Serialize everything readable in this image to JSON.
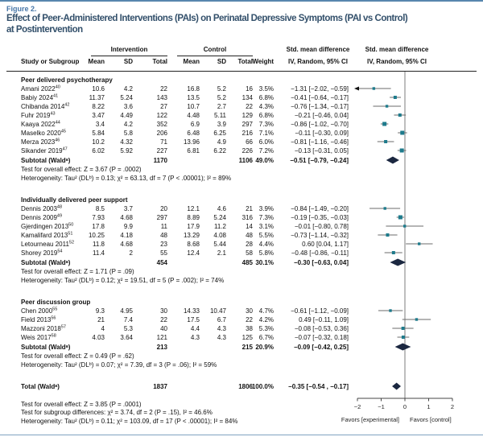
{
  "figure": {
    "eyebrow": "Figure 2.",
    "title_line1": "Effect of Peer-Administered Interventions (PAIs) on Perinatal Depressive Symptoms (PAI vs Control)",
    "title_line2": "at Postintervention"
  },
  "table": {
    "col_study": "Study or Subgroup",
    "group_intervention": "Intervention",
    "group_control": "Control",
    "col_mean": "Mean",
    "col_sd": "SD",
    "col_total": "Total",
    "col_weight": "Weight",
    "col_smd_line1": "Std. mean difference",
    "col_smd_line2": "IV, Random, 95% CI"
  },
  "sections": [
    {
      "title": "Peer delivered psychotherapy",
      "rows": [
        {
          "study": "Amani 2022",
          "ref": "40",
          "i_mean": "10.6",
          "i_sd": "4.2",
          "i_total": "22",
          "c_mean": "16.8",
          "c_sd": "5.2",
          "c_total": "16",
          "weight": "3.5%",
          "ci": "−1.31 [−2.02, −0.59]"
        },
        {
          "study": "Babiy 2024",
          "ref": "41",
          "i_mean": "11.37",
          "i_sd": "5.24",
          "i_total": "143",
          "c_mean": "13.5",
          "c_sd": "5.2",
          "c_total": "134",
          "weight": "6.8%",
          "ci": "−0.41 [−0.64, −0.17]"
        },
        {
          "study": "Chibanda 2014",
          "ref": "42",
          "i_mean": "8.22",
          "i_sd": "3.6",
          "i_total": "27",
          "c_mean": "10.7",
          "c_sd": "2.7",
          "c_total": "22",
          "weight": "4.3%",
          "ci": "−0.76 [−1.34, −0.17]"
        },
        {
          "study": "Fuhr 2019",
          "ref": "43",
          "i_mean": "3.47",
          "i_sd": "4.49",
          "i_total": "122",
          "c_mean": "4.48",
          "c_sd": "5.11",
          "c_total": "129",
          "weight": "6.8%",
          "ci": "−0.21 [−0.46, 0.04]"
        },
        {
          "study": "Kaaya 2022",
          "ref": "44",
          "i_mean": "3.4",
          "i_sd": "4.2",
          "i_total": "352",
          "c_mean": "6.9",
          "c_sd": "3.9",
          "c_total": "297",
          "weight": "7.3%",
          "ci": "−0.86 [−1.02, −0.70]"
        },
        {
          "study": "Maselko 2020",
          "ref": "45",
          "i_mean": "5.84",
          "i_sd": "5.8",
          "i_total": "206",
          "c_mean": "6.48",
          "c_sd": "6.25",
          "c_total": "216",
          "weight": "7.1%",
          "ci": "−0.11 [−0.30, 0.09]"
        },
        {
          "study": "Merza 2023",
          "ref": "46",
          "i_mean": "10.2",
          "i_sd": "4.32",
          "i_total": "71",
          "c_mean": "13.96",
          "c_sd": "4.9",
          "c_total": "66",
          "weight": "6.0%",
          "ci": "−0.81 [−1.16, −0.46]"
        },
        {
          "study": "Sikander 2019",
          "ref": "47",
          "i_mean": "6.02",
          "i_sd": "5.92",
          "i_total": "227",
          "c_mean": "6.81",
          "c_sd": "6.22",
          "c_total": "226",
          "weight": "7.2%",
          "ci": "−0.13 [−0.31, 0.05]"
        }
      ],
      "subtotal": {
        "label": "Subtotal (Waldᵃ)",
        "i_total": "1170",
        "c_total": "1106",
        "weight": "49.0%",
        "ci": "−0.51 [−0.79, −0.24]"
      },
      "footnotes": [
        "Test for overall effect: Z = 3.67 (P = .0002)",
        "Heterogeneity: Tau² (DLᵇ) = 0.13; χ² = 63.13, df = 7 (P < .00001); I² = 89%"
      ]
    },
    {
      "title": "Individually delivered peer support",
      "rows": [
        {
          "study": "Dennis 2003",
          "ref": "48",
          "i_mean": "8.5",
          "i_sd": "3.7",
          "i_total": "20",
          "c_mean": "12.1",
          "c_sd": "4.6",
          "c_total": "21",
          "weight": "3.9%",
          "ci": "−0.84 [−1.49, −0.20]"
        },
        {
          "study": "Dennis 2009",
          "ref": "49",
          "i_mean": "7.93",
          "i_sd": "4.68",
          "i_total": "297",
          "c_mean": "8.89",
          "c_sd": "5.24",
          "c_total": "316",
          "weight": "7.3%",
          "ci": "−0.19 [−0.35, −0.03]"
        },
        {
          "study": "Gjerdingen 2013",
          "ref": "50",
          "i_mean": "17.8",
          "i_sd": "9.9",
          "i_total": "11",
          "c_mean": "17.9",
          "c_sd": "11.2",
          "c_total": "14",
          "weight": "3.1%",
          "ci": "−0.01 [−0.80, 0.78]"
        },
        {
          "study": "Kamalifard 2013",
          "ref": "51",
          "i_mean": "10.25",
          "i_sd": "4.18",
          "i_total": "48",
          "c_mean": "13.29",
          "c_sd": "4.08",
          "c_total": "48",
          "weight": "5.5%",
          "ci": "−0.73 [−1.14, −0.32]"
        },
        {
          "study": "Letourneau 2011",
          "ref": "52",
          "i_mean": "11.8",
          "i_sd": "4.68",
          "i_total": "23",
          "c_mean": "8.68",
          "c_sd": "5.44",
          "c_total": "28",
          "weight": "4.4%",
          "ci": "0.60 [0.04, 1.17]"
        },
        {
          "study": "Shorey 2019",
          "ref": "54",
          "i_mean": "11.4",
          "i_sd": "2",
          "i_total": "55",
          "c_mean": "12.4",
          "c_sd": "2.1",
          "c_total": "58",
          "weight": "5.8%",
          "ci": "−0.48 [−0.86, −0.11]"
        }
      ],
      "subtotal": {
        "label": "Subtotal (Waldᵃ)",
        "i_total": "454",
        "c_total": "485",
        "weight": "30.1%",
        "ci": "−0.30 [−0.63, 0.04]"
      },
      "footnotes": [
        "Test for overall effect: Z = 1.71 (P = .09)",
        "Heterogeneity: Tau² (DLᵇ) = 0.12; χ² = 19.51, df = 5 (P = .002); I² = 74%"
      ]
    },
    {
      "title": "Peer discussion group",
      "rows": [
        {
          "study": "Chen 2000",
          "ref": "55",
          "i_mean": "9.3",
          "i_sd": "4.95",
          "i_total": "30",
          "c_mean": "14.33",
          "c_sd": "10.47",
          "c_total": "30",
          "weight": "4.7%",
          "ci": "−0.61 [−1.12, −0.09]"
        },
        {
          "study": "Field 2013",
          "ref": "56",
          "i_mean": "21",
          "i_sd": "7.4",
          "i_total": "22",
          "c_mean": "17.5",
          "c_sd": "6.7",
          "c_total": "22",
          "weight": "4.2%",
          "ci": "0.49 [−0.11, 1.09]"
        },
        {
          "study": "Mazzoni 2018",
          "ref": "57",
          "i_mean": "4",
          "i_sd": "5.3",
          "i_total": "40",
          "c_mean": "4.4",
          "c_sd": "4.3",
          "c_total": "38",
          "weight": "5.3%",
          "ci": "−0.08 [−0.53, 0.36]"
        },
        {
          "study": "Weis 2017",
          "ref": "58",
          "i_mean": "4.03",
          "i_sd": "3.64",
          "i_total": "121",
          "c_mean": "4.3",
          "c_sd": "4.3",
          "c_total": "125",
          "weight": "6.7%",
          "ci": "−0.07 [−0.32, 0.18]"
        }
      ],
      "subtotal": {
        "label": "Subtotal (Waldᵃ)",
        "i_total": "213",
        "c_total": "215",
        "weight": "20.9%",
        "ci": "−0.09 [−0.42, 0.25]"
      },
      "footnotes": [
        "Test for overall effect: Z = 0.49 (P = .62)",
        "Heterogeneity: Tau² (DLᵇ) = 0.07; χ² = 7.39, df = 3 (P = .06); I² = 59%"
      ]
    }
  ],
  "total": {
    "label": "Total (Waldᵃ)",
    "i_total": "1837",
    "c_total": "1806",
    "weight": "100.0%",
    "ci": "−0.35 [−0.54 , −0.17]"
  },
  "footer": [
    "Test for overall effect: Z = 3.85 (P = .0001)",
    "Test for subgroup differences: χ² = 3.74, df = 2 (P = .15), I² = 46.6%",
    "Heterogeneity: Tau² (DLᵇ) = 0.11; χ² = 103.09, df = 17 (P < .00001); I² = 84%"
  ],
  "axis": {
    "ticks": [
      "−2",
      "−1",
      "0",
      "1",
      "2"
    ],
    "favors_left": "Favors [experimental]",
    "favors_right": "Favors [control]"
  },
  "colors": {
    "accent": "#4576a8",
    "title": "#33506b",
    "rule_blue": "#5886ae",
    "rule_blue2": "#7fa3c0",
    "marker": "#1e7b8c",
    "diamond": "#1b2740",
    "ci_line": "#6b6b6b",
    "zero_line": "#9a9a9a"
  },
  "chart_data": {
    "type": "forest",
    "title": "Effect of Peer-Administered Interventions (PAIs) on Perinatal Depressive Symptoms (PAI vs Control) at Postintervention",
    "effect_measure": "Std. mean difference, IV, Random, 95% CI",
    "xlim": [
      -2,
      2
    ],
    "x_ticks": [
      -2,
      -1,
      0,
      1,
      2
    ],
    "favors_left": "Favors [experimental]",
    "favors_right": "Favors [control]",
    "groups": [
      {
        "name": "Peer delivered psychotherapy",
        "studies": [
          {
            "label": "Amani 2022",
            "smd": -1.31,
            "lo": -2.02,
            "hi": -0.59,
            "weight_pct": 3.5
          },
          {
            "label": "Babiy 2024",
            "smd": -0.41,
            "lo": -0.64,
            "hi": -0.17,
            "weight_pct": 6.8
          },
          {
            "label": "Chibanda 2014",
            "smd": -0.76,
            "lo": -1.34,
            "hi": -0.17,
            "weight_pct": 4.3
          },
          {
            "label": "Fuhr 2019",
            "smd": -0.21,
            "lo": -0.46,
            "hi": 0.04,
            "weight_pct": 6.8
          },
          {
            "label": "Kaaya 2022",
            "smd": -0.86,
            "lo": -1.02,
            "hi": -0.7,
            "weight_pct": 7.3
          },
          {
            "label": "Maselko 2020",
            "smd": -0.11,
            "lo": -0.3,
            "hi": 0.09,
            "weight_pct": 7.1
          },
          {
            "label": "Merza 2023",
            "smd": -0.81,
            "lo": -1.16,
            "hi": -0.46,
            "weight_pct": 6.0
          },
          {
            "label": "Sikander 2019",
            "smd": -0.13,
            "lo": -0.31,
            "hi": 0.05,
            "weight_pct": 7.2
          }
        ],
        "subtotal": {
          "smd": -0.51,
          "lo": -0.79,
          "hi": -0.24,
          "weight_pct": 49.0
        }
      },
      {
        "name": "Individually delivered peer support",
        "studies": [
          {
            "label": "Dennis 2003",
            "smd": -0.84,
            "lo": -1.49,
            "hi": -0.2,
            "weight_pct": 3.9
          },
          {
            "label": "Dennis 2009",
            "smd": -0.19,
            "lo": -0.35,
            "hi": -0.03,
            "weight_pct": 7.3
          },
          {
            "label": "Gjerdingen 2013",
            "smd": -0.01,
            "lo": -0.8,
            "hi": 0.78,
            "weight_pct": 3.1
          },
          {
            "label": "Kamalifard 2013",
            "smd": -0.73,
            "lo": -1.14,
            "hi": -0.32,
            "weight_pct": 5.5
          },
          {
            "label": "Letourneau 2011",
            "smd": 0.6,
            "lo": 0.04,
            "hi": 1.17,
            "weight_pct": 4.4
          },
          {
            "label": "Shorey 2019",
            "smd": -0.48,
            "lo": -0.86,
            "hi": -0.11,
            "weight_pct": 5.8
          }
        ],
        "subtotal": {
          "smd": -0.3,
          "lo": -0.63,
          "hi": 0.04,
          "weight_pct": 30.1
        }
      },
      {
        "name": "Peer discussion group",
        "studies": [
          {
            "label": "Chen 2000",
            "smd": -0.61,
            "lo": -1.12,
            "hi": -0.09,
            "weight_pct": 4.7
          },
          {
            "label": "Field 2013",
            "smd": 0.49,
            "lo": -0.11,
            "hi": 1.09,
            "weight_pct": 4.2
          },
          {
            "label": "Mazzoni 2018",
            "smd": -0.08,
            "lo": -0.53,
            "hi": 0.36,
            "weight_pct": 5.3
          },
          {
            "label": "Weis 2017",
            "smd": -0.07,
            "lo": -0.32,
            "hi": 0.18,
            "weight_pct": 6.7
          }
        ],
        "subtotal": {
          "smd": -0.09,
          "lo": -0.42,
          "hi": 0.25,
          "weight_pct": 20.9
        }
      }
    ],
    "total": {
      "smd": -0.35,
      "lo": -0.54,
      "hi": -0.17,
      "weight_pct": 100.0
    }
  }
}
